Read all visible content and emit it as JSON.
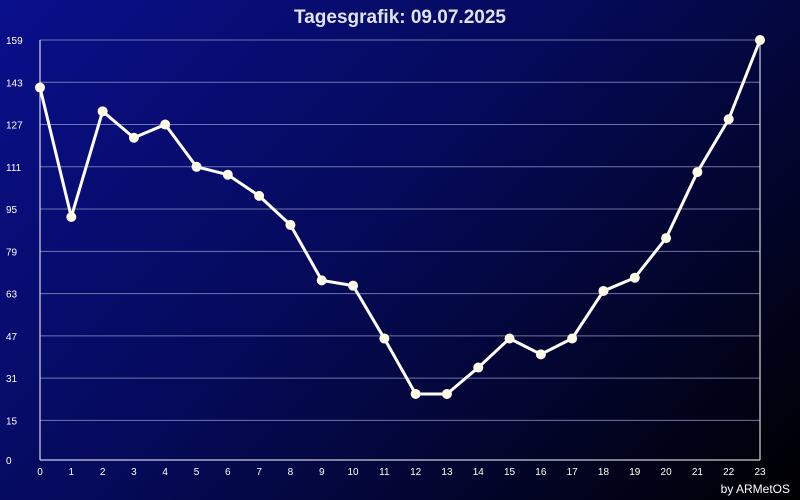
{
  "chart_data": {
    "type": "line",
    "title": "Tagesgrafik: 09.07.2025",
    "xlabel": "",
    "ylabel": "",
    "x": [
      0,
      1,
      2,
      3,
      4,
      5,
      6,
      7,
      8,
      9,
      10,
      11,
      12,
      13,
      14,
      15,
      16,
      17,
      18,
      19,
      20,
      21,
      22,
      23
    ],
    "x_tick_labels": [
      "0",
      "1",
      "2",
      "3",
      "4",
      "5",
      "6",
      "7",
      "8",
      "9",
      "10",
      "11",
      "12",
      "13",
      "14",
      "15",
      "16",
      "17",
      "18",
      "19",
      "20",
      "21",
      "22",
      "23"
    ],
    "y_tick_labels": [
      "0",
      "15",
      "31",
      "47",
      "63",
      "79",
      "95",
      "111",
      "127",
      "143",
      "159"
    ],
    "y_ticks": [
      0,
      15,
      31,
      47,
      63,
      79,
      95,
      111,
      127,
      143,
      159
    ],
    "ylim": [
      0,
      159
    ],
    "xlim": [
      0,
      23
    ],
    "grid": true,
    "series": [
      {
        "values": [
          141,
          92,
          132,
          122,
          127,
          111,
          108,
          100,
          89,
          68,
          66,
          46,
          25,
          25,
          35,
          46,
          40,
          46,
          64,
          69,
          84,
          109,
          129,
          159
        ]
      }
    ],
    "colors": {
      "line": "#ffffff",
      "marker": "#fffbe6",
      "grid": "#8890c0",
      "axis": "#ffffff"
    }
  },
  "footer": {
    "credit": "by ARMetOS"
  }
}
